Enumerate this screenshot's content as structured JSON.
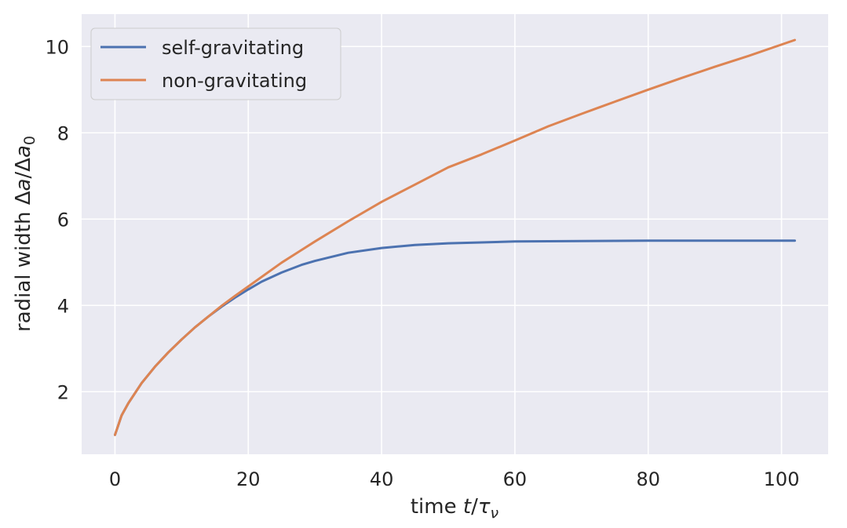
{
  "chart_data": {
    "type": "line",
    "xlabel": "time t/τν",
    "ylabel": "radial width Δa/Δa0",
    "xlim": [
      -5,
      107
    ],
    "ylim": [
      0.55,
      10.75
    ],
    "x_ticks": [
      0,
      20,
      40,
      60,
      80,
      100
    ],
    "y_ticks": [
      2,
      4,
      6,
      8,
      10
    ],
    "grid": true,
    "legend_position": "top-left",
    "colors": {
      "background": "#eaeaf2",
      "grid": "#ffffff",
      "self": "#4c72b0",
      "non": "#dd8452"
    },
    "series": [
      {
        "name": "self-gravitating",
        "x": [
          0,
          1,
          2,
          4,
          6,
          8,
          10,
          12,
          14,
          16,
          18,
          20,
          22,
          25,
          28,
          30,
          35,
          40,
          45,
          50,
          55,
          60,
          70,
          80,
          90,
          102
        ],
        "y": [
          1.0,
          1.45,
          1.73,
          2.2,
          2.58,
          2.91,
          3.21,
          3.49,
          3.74,
          3.97,
          4.18,
          4.37,
          4.55,
          4.76,
          4.94,
          5.03,
          5.22,
          5.33,
          5.4,
          5.44,
          5.46,
          5.48,
          5.49,
          5.5,
          5.5,
          5.5
        ]
      },
      {
        "name": "non-gravitating",
        "x": [
          0,
          1,
          2,
          4,
          6,
          8,
          10,
          12,
          14,
          16,
          18,
          20,
          25,
          30,
          35,
          40,
          45,
          50,
          55,
          60,
          65,
          70,
          75,
          80,
          85,
          90,
          95,
          102
        ],
        "y": [
          1.0,
          1.45,
          1.73,
          2.2,
          2.58,
          2.91,
          3.21,
          3.49,
          3.74,
          3.99,
          4.22,
          4.44,
          4.99,
          5.48,
          5.95,
          6.4,
          6.8,
          7.2,
          7.5,
          7.82,
          8.15,
          8.44,
          8.72,
          9.0,
          9.27,
          9.53,
          9.78,
          10.15
        ]
      }
    ]
  }
}
